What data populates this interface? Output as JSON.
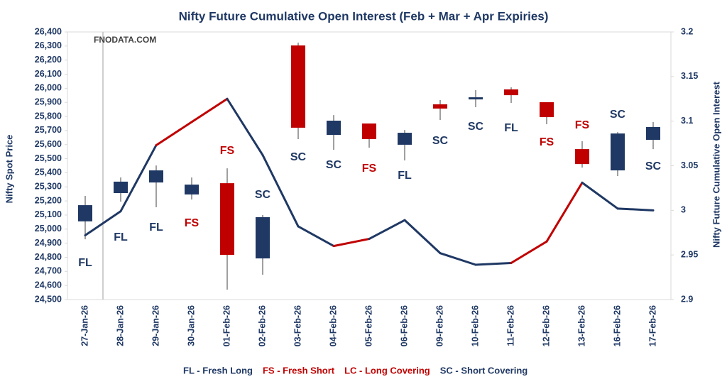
{
  "chart_data": {
    "type": "candlestick",
    "title": "Nifty Future Cumulative Open Interest (Feb + Mar + Apr Expiries)",
    "watermark": "FNODATA.COM",
    "y_label": "Nifty Spot Price",
    "y2_label": "Nifty Future Cumulative Open Interest",
    "categories": [
      "27-Jan-26",
      "28-Jan-26",
      "29-Jan-26",
      "30-Jan-26",
      "01-Feb-26",
      "02-Feb-26",
      "03-Feb-26",
      "04-Feb-26",
      "05-Feb-26",
      "06-Feb-26",
      "09-Feb-26",
      "10-Feb-26",
      "11-Feb-26",
      "12-Feb-26",
      "13-Feb-26",
      "16-Feb-26",
      "17-Feb-26"
    ],
    "open": [
      25055,
      25256,
      25331,
      25246,
      25326,
      24792,
      26304,
      25669,
      25750,
      25599,
      25886,
      25921,
      25992,
      25901,
      25568,
      25417,
      25634
    ],
    "high": [
      25236,
      25367,
      25452,
      25367,
      25432,
      25100,
      26324,
      25810,
      25750,
      25704,
      25916,
      25987,
      26007,
      25901,
      25624,
      25689,
      25760
    ],
    "low": [
      24928,
      25195,
      25155,
      25210,
      24570,
      24676,
      25639,
      25563,
      25578,
      25488,
      25775,
      25866,
      25896,
      25745,
      25437,
      25377,
      25568
    ],
    "close": [
      25170,
      25337,
      25417,
      25316,
      24817,
      25085,
      25720,
      25770,
      25639,
      25684,
      25856,
      25936,
      25951,
      25795,
      25462,
      25679,
      25725
    ],
    "up_color": "#1f3864",
    "down_color": "#c00000",
    "signals": [
      "FL",
      "FL",
      "FL",
      "FS",
      "FS",
      "SC",
      "SC",
      "SC",
      "FS",
      "FL",
      "SC",
      "SC",
      "FL",
      "FS",
      "FS",
      "SC",
      "SC"
    ],
    "signal_colors": {
      "FL": "#1f3864",
      "FS": "#c00000",
      "SC": "#1f3864"
    },
    "oi": {
      "axis": "y2",
      "color": "#1f3864",
      "values": [
        2.972,
        2.999,
        3.073,
        3.099,
        3.125,
        3.062,
        2.982,
        2.96,
        2.968,
        2.989,
        2.952,
        2.939,
        2.941,
        2.965,
        3.031,
        3.002,
        3.0
      ],
      "segment_colors": [
        "#1f3864",
        "#1f3864",
        "#c00000",
        "#c00000",
        "#1f3864",
        "#1f3864",
        "#1f3864",
        "#c00000",
        "#1f3864",
        "#1f3864",
        "#1f3864",
        "#1f3864",
        "#c00000",
        "#c00000",
        "#1f3864",
        "#1f3864"
      ]
    },
    "ylim": [
      24500,
      26400
    ],
    "yticks": [
      {
        "value": 24500,
        "label": "24,500"
      },
      {
        "value": 24600,
        "label": "24,600"
      },
      {
        "value": 24700,
        "label": "24,700"
      },
      {
        "value": 24800,
        "label": "24,800"
      },
      {
        "value": 24900,
        "label": "24,900"
      },
      {
        "value": 25000,
        "label": "25,000"
      },
      {
        "value": 25100,
        "label": "25,100"
      },
      {
        "value": 25200,
        "label": "25,200"
      },
      {
        "value": 25300,
        "label": "25,300"
      },
      {
        "value": 25400,
        "label": "25,400"
      },
      {
        "value": 25500,
        "label": "25,500"
      },
      {
        "value": 25600,
        "label": "25,600"
      },
      {
        "value": 25700,
        "label": "25,700"
      },
      {
        "value": 25800,
        "label": "25,800"
      },
      {
        "value": 25900,
        "label": "25,900"
      },
      {
        "value": 26000,
        "label": "26,000"
      },
      {
        "value": 26100,
        "label": "26,100"
      },
      {
        "value": 26200,
        "label": "26,200"
      },
      {
        "value": 26300,
        "label": "26,300"
      },
      {
        "value": 26400,
        "label": "26,400"
      }
    ],
    "y2lim": [
      2.9,
      3.2
    ],
    "y2ticks": [
      2.9,
      2.95,
      3,
      3.05,
      3.1,
      3.15,
      3.2
    ],
    "legend": [
      {
        "text": "FL - Fresh Long",
        "color": "#1f3864"
      },
      {
        "text": "FS - Fresh Short",
        "color": "#c00000"
      },
      {
        "text": "LC - Long Covering",
        "color": "#c00000"
      },
      {
        "text": "SC - Short Covering",
        "color": "#1f3864"
      }
    ]
  }
}
